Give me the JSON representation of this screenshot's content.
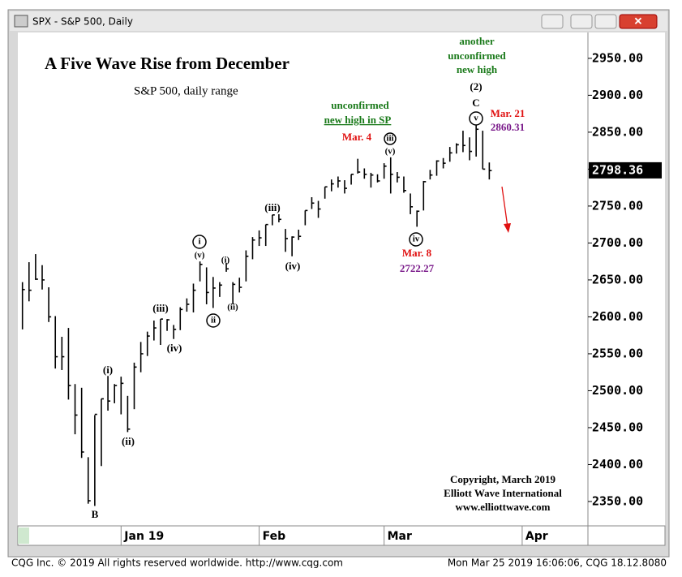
{
  "window": {
    "title": "SPX - S&P 500, Daily"
  },
  "footer": {
    "left": "CQG Inc. © 2019 All rights reserved worldwide. http://www.cqg.com",
    "right": "Mon Mar 25 2019 16:06:06, CQG 18.12.8080"
  },
  "chart_data": {
    "type": "ohlc",
    "title": "A Five Wave Rise from December",
    "subtitle": "S&P 500, daily range",
    "color": "#000000",
    "xlim": [
      -0.7,
      86
    ],
    "xticks": [
      {
        "value": 15,
        "label": "Jan 19"
      },
      {
        "value": 36,
        "label": "Feb"
      },
      {
        "value": 55,
        "label": "Mar"
      },
      {
        "value": 76,
        "label": "Apr"
      }
    ],
    "ylim": [
      2317,
      3007
    ],
    "yticks": [
      {
        "value": 2350,
        "label": "2350.00"
      },
      {
        "value": 2400,
        "label": "2400.00"
      },
      {
        "value": 2450,
        "label": "2450.00"
      },
      {
        "value": 2500,
        "label": "2500.00"
      },
      {
        "value": 2550,
        "label": "2550.00"
      },
      {
        "value": 2600,
        "label": "2600.00"
      },
      {
        "value": 2650,
        "label": "2650.00"
      },
      {
        "value": 2700,
        "label": "2700.00"
      },
      {
        "value": 2750,
        "label": "2750.00"
      },
      {
        "value": 2800,
        "label": "2800.00"
      },
      {
        "value": 2850,
        "label": "2850.00"
      },
      {
        "value": 2900,
        "label": "2900.00"
      },
      {
        "value": 2950,
        "label": "2950.00"
      }
    ],
    "last_price": 2798.36,
    "high": [
      2647,
      2674,
      2685,
      2670,
      2640,
      2601,
      2573,
      2585,
      2509,
      2504,
      2410,
      2467,
      2489,
      2520,
      2509,
      2519,
      2493,
      2538,
      2566,
      2580,
      2595,
      2597,
      2597,
      2589,
      2613,
      2625,
      2645,
      2675,
      2667,
      2654,
      2647,
      2673,
      2647,
      2653,
      2690,
      2708,
      2717,
      2725,
      2738,
      2739,
      2719,
      2709,
      2718,
      2744,
      2762,
      2757,
      2776,
      2786,
      2790,
      2785,
      2793,
      2814,
      2801,
      2795,
      2793,
      2808,
      2816,
      2796,
      2790,
      2767,
      2744,
      2784,
      2799,
      2812,
      2815,
      2830,
      2835,
      2852,
      2843,
      2860,
      2852,
      2809
    ],
    "low": [
      2583,
      2621,
      2650,
      2637,
      2593,
      2530,
      2528,
      2488,
      2441,
      2409,
      2347,
      2344,
      2398,
      2473,
      2483,
      2468,
      2444,
      2475,
      2525,
      2547,
      2568,
      2562,
      2581,
      2570,
      2582,
      2607,
      2606,
      2648,
      2617,
      2612,
      2627,
      2661,
      2617,
      2633,
      2648,
      2678,
      2696,
      2696,
      2724,
      2728,
      2688,
      2682,
      2704,
      2724,
      2746,
      2734,
      2760,
      2770,
      2775,
      2767,
      2779,
      2794,
      2787,
      2775,
      2782,
      2787,
      2767,
      2782,
      2768,
      2739,
      2722,
      2744,
      2786,
      2791,
      2801,
      2810,
      2821,
      2823,
      2812,
      2817,
      2800,
      2786
    ],
    "close": [
      2637,
      2636,
      2651,
      2650,
      2600,
      2546,
      2546,
      2507,
      2467,
      2417,
      2351,
      2468,
      2489,
      2486,
      2507,
      2510,
      2448,
      2532,
      2550,
      2574,
      2585,
      2597,
      2596,
      2583,
      2610,
      2617,
      2636,
      2671,
      2633,
      2639,
      2643,
      2665,
      2644,
      2640,
      2682,
      2704,
      2707,
      2725,
      2738,
      2732,
      2706,
      2708,
      2709,
      2744,
      2754,
      2746,
      2776,
      2780,
      2784,
      2774,
      2793,
      2796,
      2793,
      2792,
      2784,
      2804,
      2793,
      2789,
      2771,
      2749,
      2743,
      2783,
      2792,
      2811,
      2808,
      2822,
      2833,
      2832,
      2824,
      2854,
      2800,
      2798
    ],
    "annotations": [
      "(i)",
      "(ii)",
      "(iii)",
      "(iv)",
      "i",
      "(v)",
      "ii",
      "(i)",
      "(ii)",
      "(iii)",
      "(iv)",
      "unconfirmed",
      "new high in SP",
      "Mar. 4",
      "iii",
      "(v)",
      "iv",
      "Mar. 8",
      "2722.27",
      "another",
      "unconfirmed",
      "new high",
      "(2)",
      "C",
      "v",
      "Mar. 21",
      "2860.31",
      "B",
      "Copyright, March 2019",
      "Elliott Wave International",
      "www.elliottwave.com"
    ]
  }
}
